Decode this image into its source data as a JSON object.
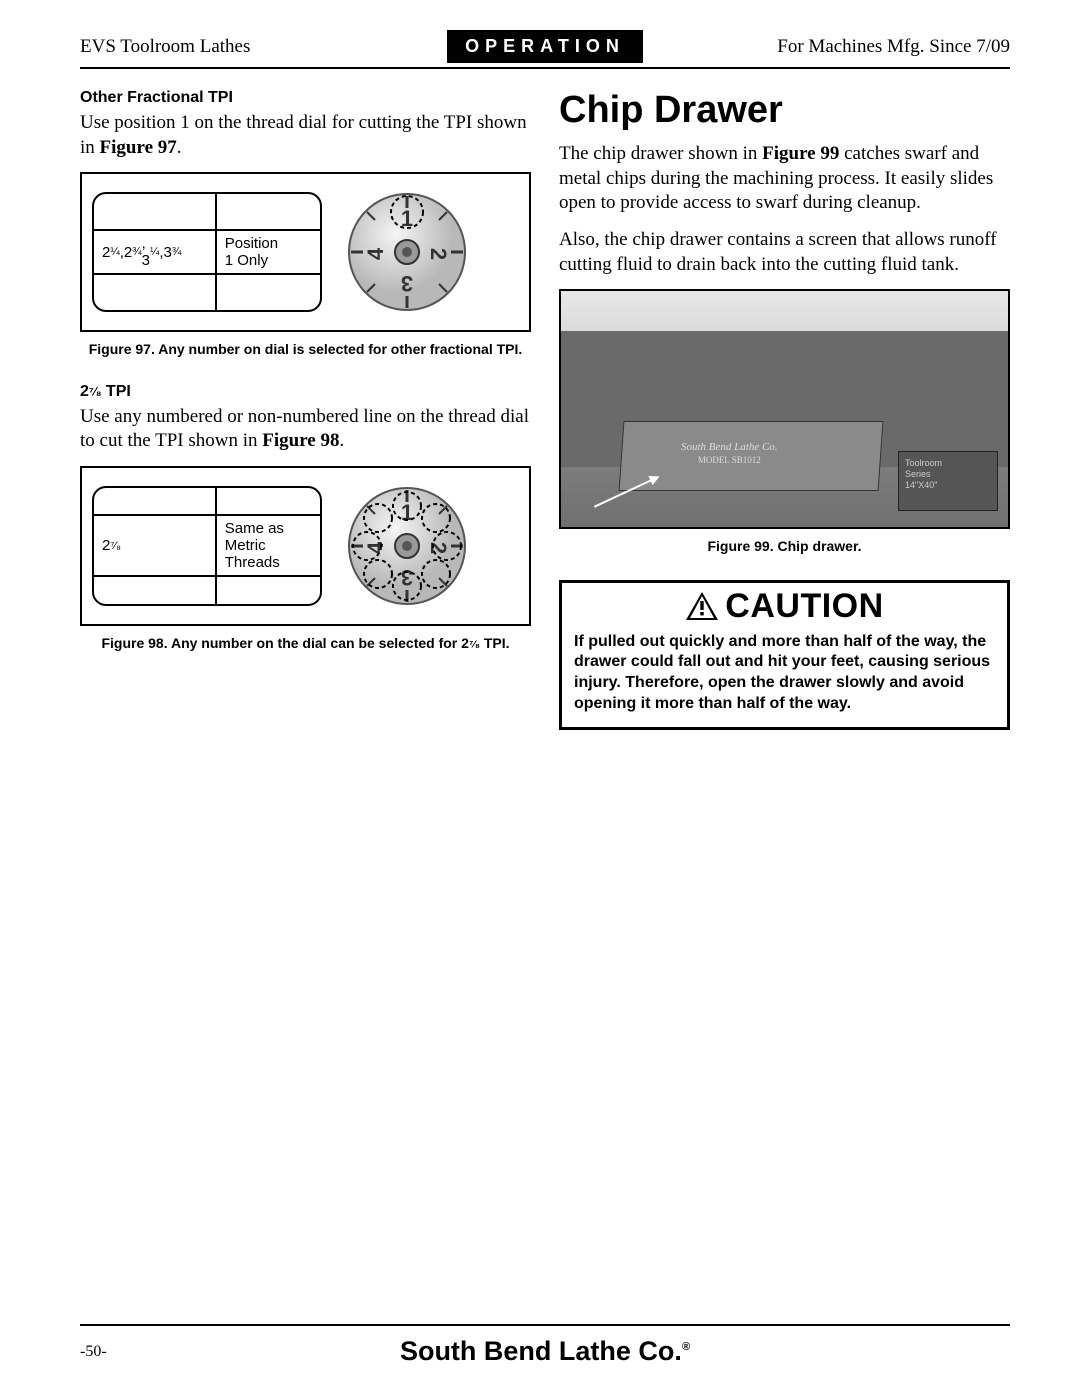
{
  "header": {
    "left": "EVS Toolroom Lathes",
    "center": "OPERATION",
    "right": "For Machines Mfg. Since 7/09"
  },
  "left_column": {
    "section1": {
      "heading": "Other Fractional TPI",
      "paragraph_html": "Use position 1 on the thread dial for cutting the TPI shown in <b>Figure 97</b>.",
      "table": {
        "left_cell": "2¼,2¾, 3¼,3¾",
        "right_cell": "Position 1 Only"
      },
      "dial": {
        "type": "thread-dial",
        "numbers": [
          "1",
          "2",
          "3",
          "4"
        ],
        "highlighted": [
          1
        ],
        "dashed": [
          1
        ]
      },
      "caption": "Figure 97. Any number on dial is selected for other fractional TPI."
    },
    "section2": {
      "heading": "2⅞ TPI",
      "paragraph_html": "Use any numbered or non-numbered line on the thread dial to cut the TPI shown in <b>Figure 98</b>.",
      "table": {
        "left_cell": "2⅞",
        "right_cell": "Same as Metric Threads"
      },
      "dial": {
        "type": "thread-dial",
        "numbers": [
          "1",
          "2",
          "3",
          "4"
        ],
        "highlighted": [
          1,
          2,
          3,
          4
        ],
        "dashed": [
          1,
          2,
          3,
          4,
          "mid"
        ]
      },
      "caption": "Figure 98. Any number on the dial can be selected for 2⅞ TPI."
    }
  },
  "right_column": {
    "title": "Chip Drawer",
    "para1_html": "The chip drawer shown in <b>Figure 99</b> catches swarf and metal chips during the machining process. It easily slides open to provide access to swarf during cleanup.",
    "para2": "Also, the chip drawer contains a screen that allows runoff cutting fluid to drain back into the cutting fluid tank.",
    "photo": {
      "brand_label": "South Bend Lathe Co.",
      "model_label": "MODEL SB1012",
      "side_label_1": "Toolroom",
      "side_label_2": "Series",
      "side_label_3": "14\"X40\""
    },
    "photo_caption": "Figure 99. Chip drawer.",
    "caution": {
      "title": "CAUTION",
      "body": "If pulled out quickly and more than half of the way, the drawer could fall out and hit your feet, causing serious injury. Therefore, open the drawer slowly and avoid opening it more than half of the way."
    }
  },
  "footer": {
    "page": "-50-",
    "brand": "South Bend Lathe Co",
    "reg": "®"
  },
  "colors": {
    "black": "#000000",
    "white": "#ffffff",
    "photo_gray_light": "#d0d0d0",
    "photo_gray_dark": "#707070"
  },
  "typography": {
    "body_family": "Georgia, serif",
    "sans_family": "Arial, Helvetica, sans-serif",
    "body_size_pt": 14,
    "heading_size_pt": 28,
    "caption_size_pt": 10
  }
}
